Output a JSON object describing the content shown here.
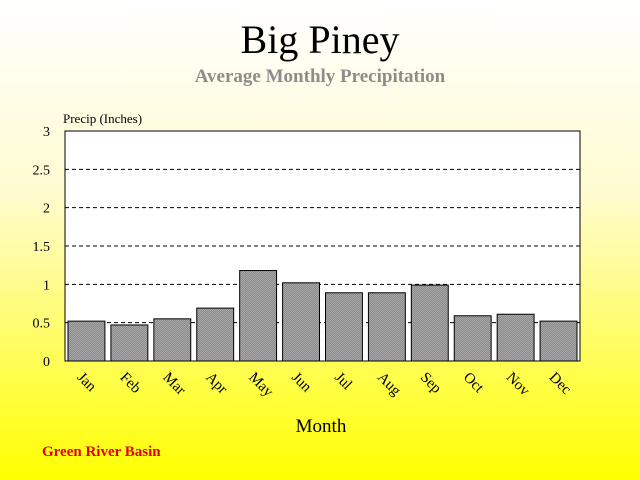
{
  "title": "Big Piney",
  "subtitle": "Average Monthly Precipitation",
  "footer": "Green River Basin",
  "chart_data": {
    "type": "bar",
    "title": "Big Piney",
    "subtitle": "Average Monthly Precipitation",
    "xlabel": "Month",
    "ylabel": "Precip (Inches)",
    "categories": [
      "Jan",
      "Feb",
      "Mar",
      "Apr",
      "May",
      "Jun",
      "Jul",
      "Aug",
      "Sep",
      "Oct",
      "Nov",
      "Dec"
    ],
    "values": [
      0.52,
      0.47,
      0.55,
      0.69,
      1.18,
      1.02,
      0.89,
      0.89,
      0.99,
      0.59,
      0.61,
      0.52
    ],
    "ylim": [
      0,
      3
    ],
    "yticks": [
      "0",
      "0.5",
      "1",
      "1.5",
      "2",
      "2.5",
      "3"
    ],
    "grid": "horizontal dashed",
    "legend": "none",
    "colors": {
      "bar": "#8a8a8a",
      "plot_bg": "#ffffff",
      "axis": "#000000"
    }
  }
}
